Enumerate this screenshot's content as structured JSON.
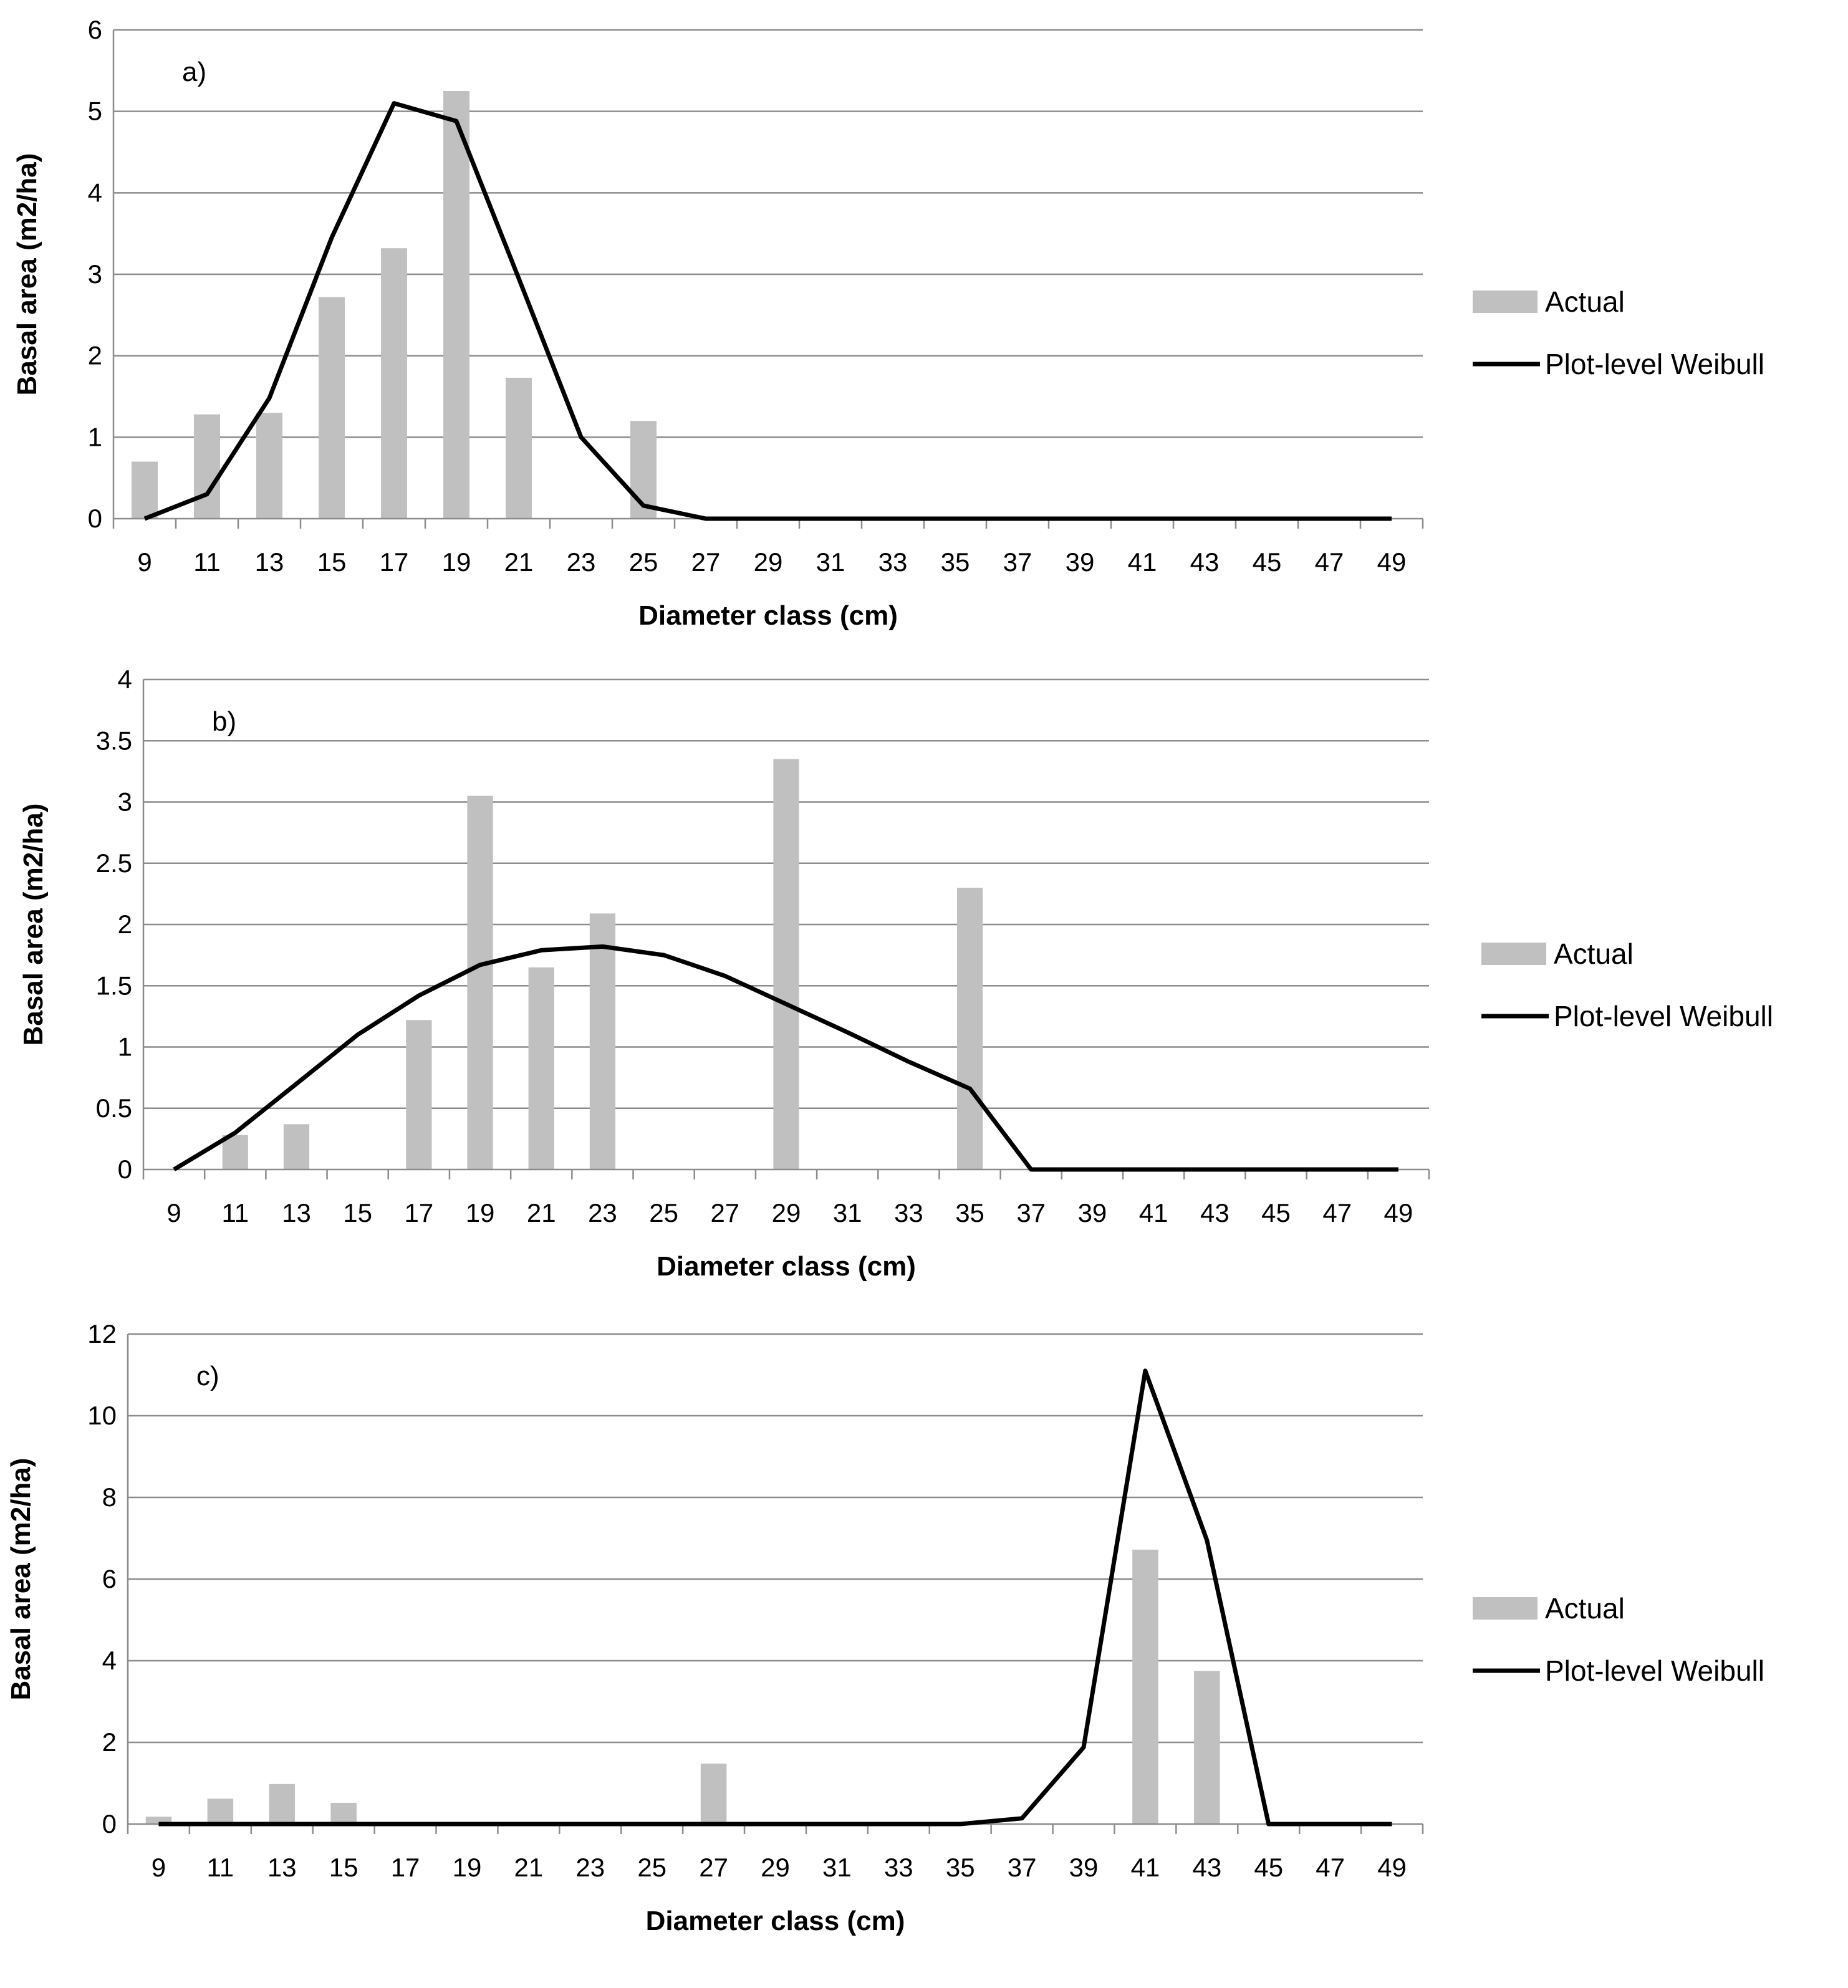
{
  "chart_data": [
    {
      "type": "bar",
      "panel_label": "a)",
      "xlabel": "Diameter class (cm)",
      "ylabel": "Basal area (m2/ha)",
      "ylim": [
        0,
        6
      ],
      "yticks": [
        "0",
        "1",
        "2",
        "3",
        "4",
        "5",
        "6"
      ],
      "grid": "horizontal",
      "legend_position": "right",
      "categories": [
        "9",
        "11",
        "13",
        "15",
        "17",
        "19",
        "21",
        "23",
        "25",
        "27",
        "29",
        "31",
        "33",
        "35",
        "37",
        "39",
        "41",
        "43",
        "45",
        "47",
        "49"
      ],
      "series": [
        {
          "name": "Actual",
          "kind": "bar",
          "color": "#c0c0c0",
          "values": [
            0.7,
            1.28,
            1.3,
            2.72,
            3.32,
            5.25,
            1.73,
            0,
            1.2,
            0,
            0,
            0,
            0,
            0,
            0,
            0,
            0,
            0,
            0,
            0,
            0
          ]
        },
        {
          "name": "Plot-level Weibull",
          "kind": "line",
          "color": "#000000",
          "values": [
            0,
            0.3,
            1.48,
            3.45,
            5.1,
            4.88,
            2.95,
            1.0,
            0.16,
            0,
            0,
            0,
            0,
            0,
            0,
            0,
            0,
            0,
            0,
            0,
            0
          ]
        }
      ]
    },
    {
      "type": "bar",
      "panel_label": "b)",
      "xlabel": "Diameter class (cm)",
      "ylabel": "Basal area (m2/ha)",
      "ylim": [
        0,
        4
      ],
      "yticks": [
        "0",
        "0.5",
        "1",
        "1.5",
        "2",
        "2.5",
        "3",
        "3.5",
        "4"
      ],
      "grid": "horizontal",
      "legend_position": "right",
      "categories": [
        "9",
        "11",
        "13",
        "15",
        "17",
        "19",
        "21",
        "23",
        "25",
        "27",
        "29",
        "31",
        "33",
        "35",
        "37",
        "39",
        "41",
        "43",
        "45",
        "47",
        "49"
      ],
      "series": [
        {
          "name": "Actual",
          "kind": "bar",
          "color": "#c0c0c0",
          "values": [
            0,
            0.28,
            0.37,
            0,
            1.22,
            3.05,
            1.65,
            2.09,
            0,
            0,
            3.35,
            0,
            0,
            2.3,
            0,
            0,
            0,
            0,
            0,
            0,
            0
          ]
        },
        {
          "name": "Plot-level Weibull",
          "kind": "line",
          "color": "#000000",
          "values": [
            0,
            0.3,
            0.7,
            1.1,
            1.42,
            1.67,
            1.79,
            1.82,
            1.75,
            1.58,
            1.35,
            1.12,
            0.88,
            0.66,
            0,
            0,
            0,
            0,
            0,
            0,
            0
          ]
        }
      ]
    },
    {
      "type": "bar",
      "panel_label": "c)",
      "xlabel": "Diameter class (cm)",
      "ylabel": "Basal area (m2/ha)",
      "ylim": [
        0,
        12
      ],
      "yticks": [
        "0",
        "2",
        "4",
        "6",
        "8",
        "10",
        "12"
      ],
      "grid": "horizontal",
      "legend_position": "right",
      "categories": [
        "9",
        "11",
        "13",
        "15",
        "17",
        "19",
        "21",
        "23",
        "25",
        "27",
        "29",
        "31",
        "33",
        "35",
        "37",
        "39",
        "41",
        "43",
        "45",
        "47",
        "49"
      ],
      "series": [
        {
          "name": "Actual",
          "kind": "bar",
          "color": "#c0c0c0",
          "values": [
            0.18,
            0.62,
            0.98,
            0.52,
            0,
            0,
            0,
            0,
            0,
            1.48,
            0,
            0,
            0,
            0,
            0,
            0,
            6.72,
            3.75,
            0,
            0,
            0
          ]
        },
        {
          "name": "Plot-level Weibull",
          "kind": "line",
          "color": "#000000",
          "values": [
            0,
            0,
            0,
            0,
            0,
            0,
            0,
            0,
            0,
            0,
            0,
            0,
            0,
            0,
            0.14,
            1.88,
            11.1,
            6.95,
            0,
            0,
            0
          ]
        }
      ]
    }
  ]
}
